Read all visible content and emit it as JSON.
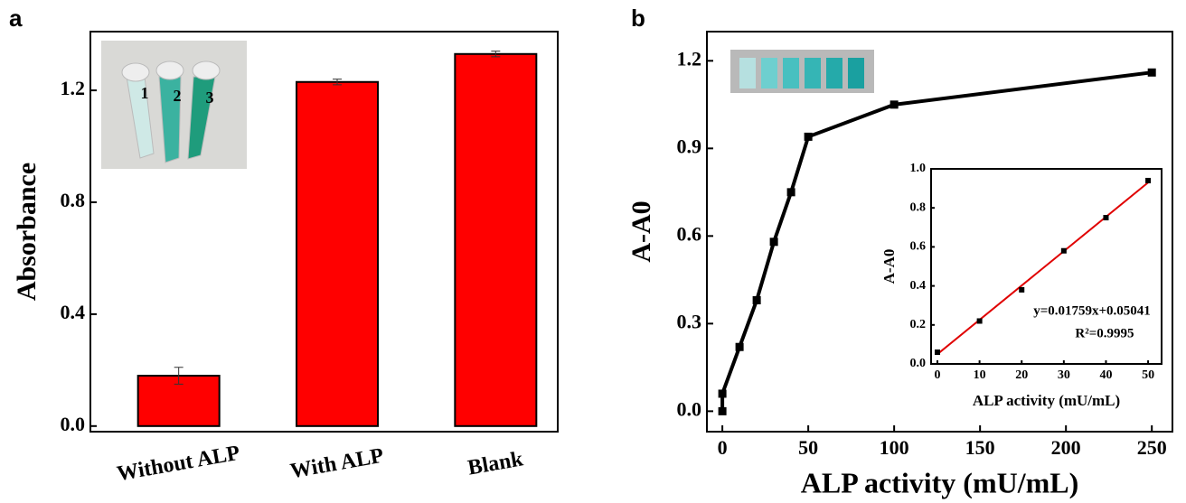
{
  "chart_data": [
    {
      "type": "bar",
      "panel": "a",
      "ylabel": "Absorbance",
      "categories": [
        "Without ALP",
        "With ALP",
        "Blank"
      ],
      "values": [
        0.18,
        1.23,
        1.33
      ],
      "errors": [
        0.03,
        0.01,
        0.01
      ],
      "color": "#ff0000",
      "ylim": [
        -0.02,
        1.41
      ],
      "yticks": [
        {
          "value": 0,
          "label": "0.0"
        },
        0.4,
        0.8,
        1.2
      ],
      "photo_labels": [
        "1",
        "2",
        "3"
      ]
    },
    {
      "type": "line",
      "panel": "b",
      "xlabel": "ALP activity (mU/mL)",
      "ylabel": "A-A0",
      "x": [
        0,
        0,
        10,
        20,
        30,
        40,
        50,
        100,
        250
      ],
      "values": [
        0.0,
        0.06,
        0.22,
        0.38,
        0.58,
        0.75,
        0.94,
        1.05,
        1.16
      ],
      "color": "#000000",
      "xlim": [
        -9,
        262
      ],
      "xticks": [
        0,
        50,
        100,
        150,
        200,
        250
      ],
      "ylim": [
        -0.07,
        1.3
      ],
      "yticks": [
        {
          "value": 0,
          "label": "0.0"
        },
        0.3,
        0.6,
        0.9,
        1.2
      ]
    },
    {
      "type": "scatter",
      "xlabel": "ALP activity  (mU/mL)",
      "ylabel": "A-A0",
      "x": [
        0,
        10,
        20,
        30,
        40,
        50
      ],
      "values": [
        0.06,
        0.22,
        0.38,
        0.58,
        0.75,
        0.94
      ],
      "color": "#000000",
      "fit_x": [
        0,
        50
      ],
      "fit_values": [
        0.05,
        0.93
      ],
      "fit_color": "#e00000",
      "equation": "y=0.01759x+0.05041",
      "r_squared": "R²=0.9995",
      "xlim": [
        -1.5,
        53.2
      ],
      "xticks": [
        0,
        10,
        20,
        30,
        40,
        50
      ],
      "ylim": [
        0,
        1.0
      ],
      "yticks": [
        {
          "value": 0,
          "label": "0.0"
        },
        0.2,
        0.4,
        0.6,
        0.8,
        {
          "value": 1,
          "label": "1.0"
        }
      ]
    }
  ]
}
